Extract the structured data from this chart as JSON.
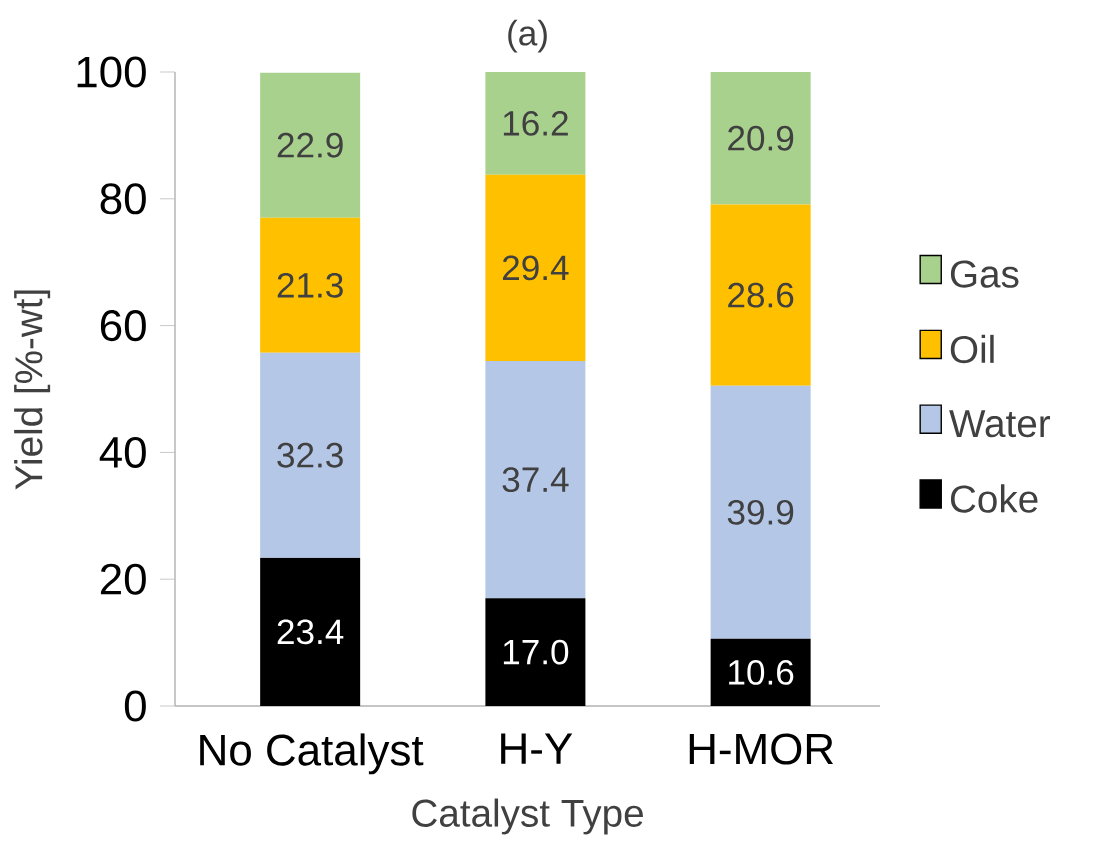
{
  "chart_data": {
    "type": "bar",
    "title": "(a)",
    "xlabel": "Catalyst Type",
    "ylabel": "Yield [%-wt]",
    "categories": [
      "No Catalyst",
      "H-Y",
      "H-MOR"
    ],
    "stacked": true,
    "series": [
      {
        "name": "Coke",
        "color": "#000000",
        "values": [
          23.4,
          17.0,
          10.6
        ],
        "value_labels": [
          "23.4",
          "17.0",
          "10.6"
        ]
      },
      {
        "name": "Water",
        "color": "#b4c7e7",
        "values": [
          32.3,
          37.4,
          39.9
        ],
        "value_labels": [
          "32.3",
          "37.4",
          "39.9"
        ]
      },
      {
        "name": "Oil",
        "color": "#ffc000",
        "values": [
          21.3,
          29.4,
          28.6
        ],
        "value_labels": [
          "21.3",
          "29.4",
          "28.6"
        ]
      },
      {
        "name": "Gas",
        "color": "#a9d18e",
        "values": [
          22.9,
          16.2,
          20.9
        ],
        "value_labels": [
          "22.9",
          "16.2",
          "20.9"
        ]
      }
    ],
    "ylim": [
      0,
      100
    ],
    "yticks": [
      0,
      20,
      40,
      60,
      80,
      100
    ],
    "grid": false,
    "legend": "right"
  }
}
